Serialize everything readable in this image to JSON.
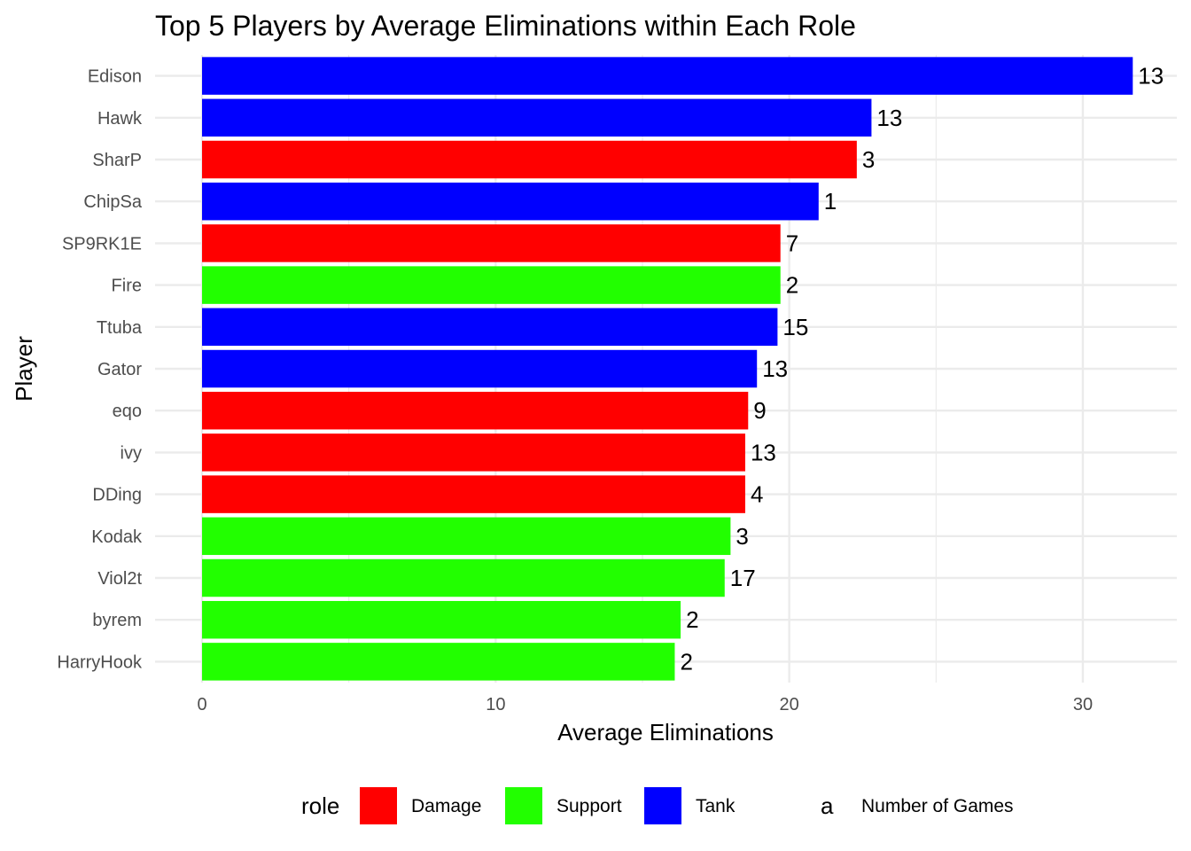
{
  "chart_data": {
    "type": "bar",
    "orientation": "horizontal",
    "title": "Top 5 Players by Average Eliminations within Each Role",
    "xlabel": "Average Eliminations",
    "ylabel": "Player",
    "xlim": [
      -1.6,
      33.2
    ],
    "xticks": [
      0,
      10,
      20,
      30
    ],
    "grid": true,
    "legend_placement": "bottom",
    "legend": {
      "fill_title": "role",
      "label_title": "a",
      "label_entry": "Number of Games",
      "entries": [
        {
          "name": "Damage",
          "color": "#ff0000"
        },
        {
          "name": "Support",
          "color": "#22ff00"
        },
        {
          "name": "Tank",
          "color": "#0000ff"
        }
      ]
    },
    "bars": [
      {
        "player": "Edison",
        "value": 31.7,
        "games": "13",
        "role": "Tank"
      },
      {
        "player": "Hawk",
        "value": 22.8,
        "games": "13",
        "role": "Tank"
      },
      {
        "player": "SharP",
        "value": 22.3,
        "games": "3",
        "role": "Damage"
      },
      {
        "player": "ChipSa",
        "value": 21.0,
        "games": "1",
        "role": "Tank"
      },
      {
        "player": "SP9RK1E",
        "value": 19.7,
        "games": "7",
        "role": "Damage"
      },
      {
        "player": "Fire",
        "value": 19.7,
        "games": "2",
        "role": "Support"
      },
      {
        "player": "Ttuba",
        "value": 19.6,
        "games": "15",
        "role": "Tank"
      },
      {
        "player": "Gator",
        "value": 18.9,
        "games": "13",
        "role": "Tank"
      },
      {
        "player": "eqo",
        "value": 18.6,
        "games": "9",
        "role": "Damage"
      },
      {
        "player": "ivy",
        "value": 18.5,
        "games": "13",
        "role": "Damage"
      },
      {
        "player": "DDing",
        "value": 18.5,
        "games": "4",
        "role": "Damage"
      },
      {
        "player": "Kodak",
        "value": 18.0,
        "games": "3",
        "role": "Support"
      },
      {
        "player": "Viol2t",
        "value": 17.8,
        "games": "17",
        "role": "Support"
      },
      {
        "player": "byrem",
        "value": 16.3,
        "games": "2",
        "role": "Support"
      },
      {
        "player": "HarryHook",
        "value": 16.1,
        "games": "2",
        "role": "Support"
      }
    ]
  }
}
